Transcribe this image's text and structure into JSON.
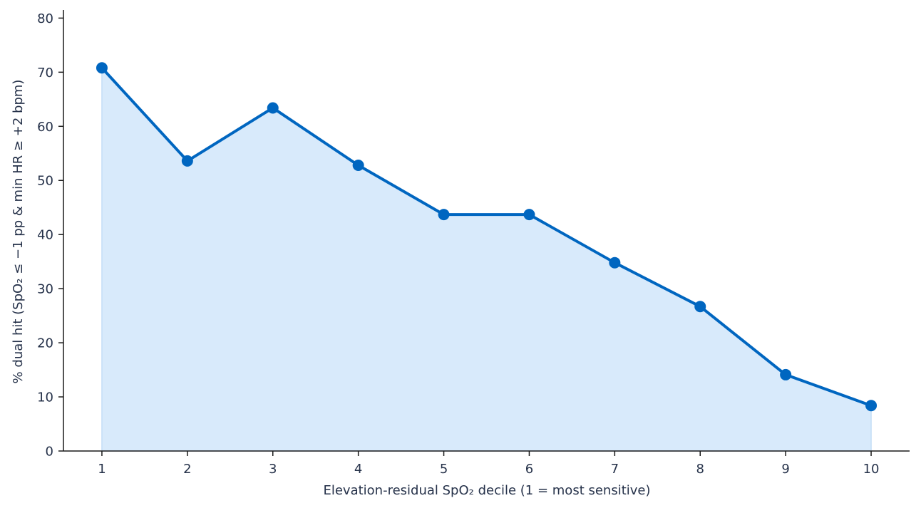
{
  "chart_data": {
    "type": "area",
    "title": "",
    "xlabel": "Elevation-residual SpO₂ decile (1 = most sensitive)",
    "ylabel": "% dual hit (SpO₂ ≤ −1 pp & min HR ≥ +2 bpm)",
    "categories": [
      "1",
      "2",
      "3",
      "4",
      "5",
      "6",
      "7",
      "8",
      "9",
      "10"
    ],
    "x": [
      1,
      2,
      3,
      4,
      5,
      6,
      7,
      8,
      9,
      10
    ],
    "values": [
      70.8,
      53.6,
      63.4,
      52.8,
      43.7,
      43.7,
      34.8,
      26.7,
      14.1,
      8.4
    ],
    "xlim": [
      0.55,
      10.45
    ],
    "ylim": [
      0,
      81.5
    ],
    "yticks": [
      0,
      10,
      20,
      30,
      40,
      50,
      60,
      70,
      80
    ],
    "grid": false,
    "legend": "none",
    "colors": {
      "line": "#0066c0",
      "fill": "#d8eafb",
      "axis": "#1a1a1a",
      "text": "#26324a"
    }
  }
}
